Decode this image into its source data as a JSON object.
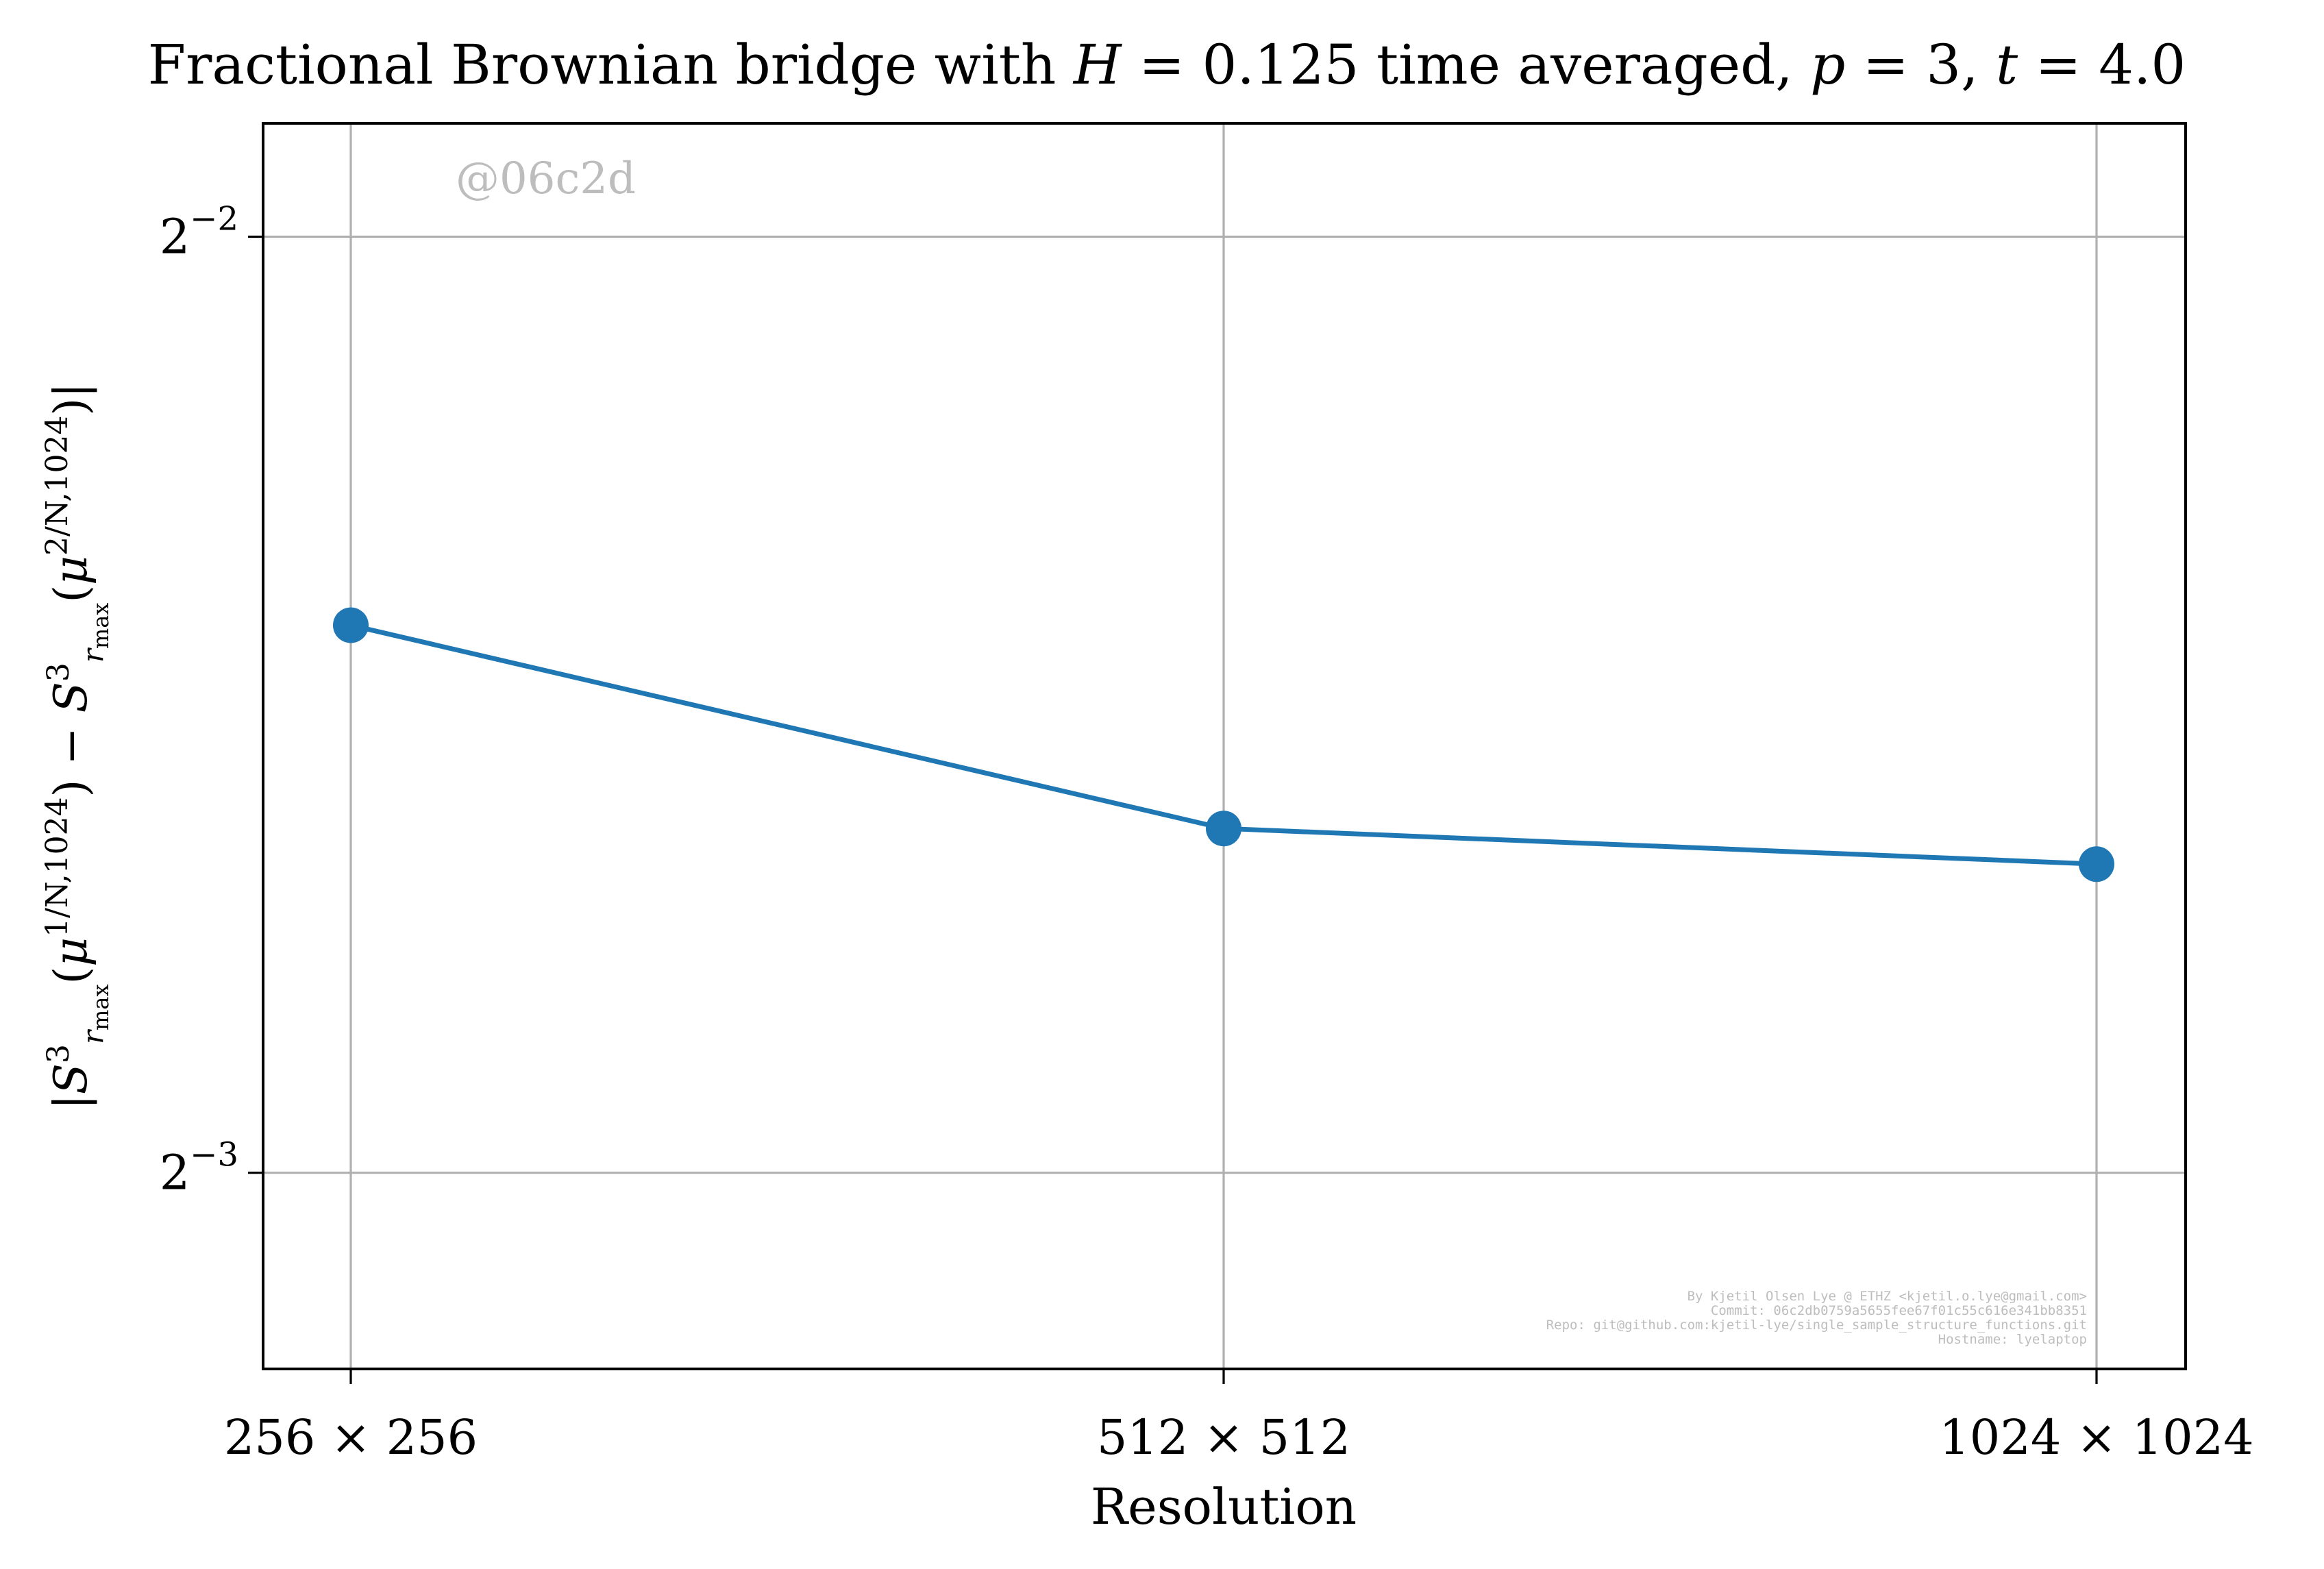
{
  "chart_data": {
    "type": "line",
    "title": "Fractional Brownian bridge with H = 0.125 time averaged, p = 3, t = 4.0",
    "xlabel": "Resolution",
    "ylabel": "|S³_{r_max}(μ^{1/N,1024}) − S³_{r_max}(μ^{2/N,1024})|",
    "categories": [
      "256 × 256",
      "512 × 512",
      "1024 × 1024"
    ],
    "series": [
      {
        "values": [
          0.1875,
          0.1613,
          0.1571
        ]
      }
    ],
    "yscale": "log2",
    "ylim": [
      0.1081,
      0.2719
    ],
    "yticks": [
      {
        "value": 0.25,
        "base": "2",
        "exp": "−2"
      },
      {
        "value": 0.125,
        "base": "2",
        "exp": "−3"
      }
    ],
    "grid": true,
    "line_color": "#1f77b4",
    "watermark": "@06c2d",
    "credits": [
      "By Kjetil Olsen Lye @ ETHZ <kjetil.o.lye@gmail.com>",
      "Commit: 06c2db0759a5655fee67f01c55c616e341bb8351",
      "Repo: git@github.com:kjetil-lye/single_sample_structure_functions.git",
      "Hostname: lyelaptop"
    ]
  }
}
